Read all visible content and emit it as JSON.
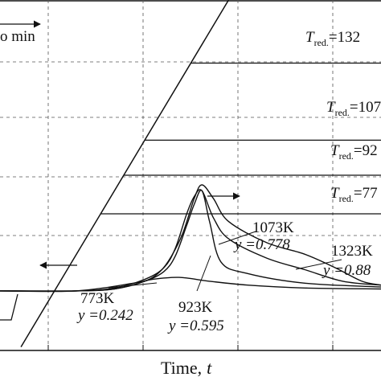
{
  "chart_data": {
    "type": "line",
    "xlabel": "Time,",
    "xlabel_var": "t",
    "title": "",
    "ylabel": "",
    "grid": true,
    "top_annotation": "o min",
    "temperature_labels": [
      {
        "prefix": "T",
        "sub": "red.",
        "value": "=132"
      },
      {
        "prefix": "T",
        "sub": "red.",
        "value": "=107"
      },
      {
        "prefix": "T",
        "sub": "red.",
        "value": "=92"
      },
      {
        "prefix": "T",
        "sub": "red.",
        "value": "=77"
      }
    ],
    "curve_labels": [
      {
        "temp": "773K",
        "y_text": "y =0.242"
      },
      {
        "temp": "923K",
        "y_text": "y =0.595"
      },
      {
        "temp": "1073K",
        "y_text": "y =0.778"
      },
      {
        "temp": "1323K",
        "y_text": "y =0.88"
      }
    ],
    "temperature_profile": {
      "ramp": [
        [
          5.5,
          1.0
        ],
        [
          60,
          100
        ]
      ],
      "holds_at_y": [
        82,
        60,
        50,
        39
      ]
    },
    "series": [
      {
        "name": "773K",
        "values": [
          [
            0,
            0
          ],
          [
            20,
            0
          ],
          [
            35,
            4
          ],
          [
            40,
            6
          ],
          [
            47,
            7
          ],
          [
            55,
            5
          ],
          [
            65,
            3
          ],
          [
            80,
            1.5
          ],
          [
            100,
            1
          ]
        ]
      },
      {
        "name": "923K",
        "values": [
          [
            0,
            0
          ],
          [
            20,
            0
          ],
          [
            30,
            1
          ],
          [
            38,
            5
          ],
          [
            43,
            10
          ],
          [
            46,
            18
          ],
          [
            49,
            34
          ],
          [
            51,
            45
          ],
          [
            53,
            52
          ],
          [
            55,
            36
          ],
          [
            58,
            15
          ],
          [
            65,
            9
          ],
          [
            80,
            4
          ],
          [
            100,
            2
          ]
        ]
      },
      {
        "name": "1073K",
        "values": [
          [
            0,
            0
          ],
          [
            20,
            0
          ],
          [
            30,
            1.5
          ],
          [
            38,
            6
          ],
          [
            43,
            12
          ],
          [
            46,
            22
          ],
          [
            49,
            40
          ],
          [
            51,
            49
          ],
          [
            53,
            52
          ],
          [
            56,
            38
          ],
          [
            60,
            27
          ],
          [
            70,
            17
          ],
          [
            80,
            11
          ],
          [
            90,
            5
          ],
          [
            100,
            3
          ]
        ]
      },
      {
        "name": "1323K",
        "values": [
          [
            0,
            0
          ],
          [
            20,
            0
          ],
          [
            30,
            1
          ],
          [
            38,
            5
          ],
          [
            42,
            10
          ],
          [
            45,
            18
          ],
          [
            48,
            30
          ],
          [
            51,
            48
          ],
          [
            53,
            55
          ],
          [
            56,
            48
          ],
          [
            60,
            36
          ],
          [
            70,
            25
          ],
          [
            80,
            19
          ],
          [
            88,
            12
          ],
          [
            95,
            5
          ],
          [
            100,
            3
          ]
        ]
      }
    ]
  }
}
